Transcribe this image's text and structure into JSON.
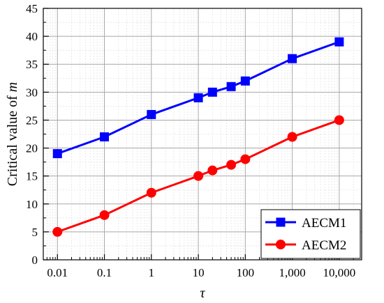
{
  "chart_data": {
    "type": "line",
    "x_scale": "log",
    "xlabel": "τ",
    "ylabel_prefix": "Critical value of ",
    "ylabel_var": "m",
    "xlim": [
      0.005,
      30000
    ],
    "ylim": [
      0,
      45
    ],
    "x_ticks": [
      0.01,
      0.1,
      1,
      10,
      100,
      1000,
      10000
    ],
    "x_tick_labels": [
      "0.01",
      "0.1",
      "1",
      "10",
      "100",
      "1,000",
      "10,000"
    ],
    "y_ticks": [
      0,
      5,
      10,
      15,
      20,
      25,
      30,
      35,
      40,
      45
    ],
    "y_tick_labels": [
      "0",
      "5",
      "10",
      "15",
      "20",
      "25",
      "30",
      "35",
      "40",
      "45"
    ],
    "grid": true,
    "legend_position": "bottom-right",
    "x": [
      0.01,
      0.1,
      1,
      10,
      20,
      50,
      100,
      1000,
      10000
    ],
    "series": [
      {
        "name": "AECM1",
        "color": "#0000ff",
        "marker": "square",
        "values": [
          19,
          22,
          26,
          29,
          30,
          31,
          32,
          36,
          39
        ]
      },
      {
        "name": "AECM2",
        "color": "#ff0000",
        "marker": "circle",
        "values": [
          5,
          8,
          12,
          15,
          16,
          17,
          18,
          22,
          25
        ]
      }
    ]
  }
}
